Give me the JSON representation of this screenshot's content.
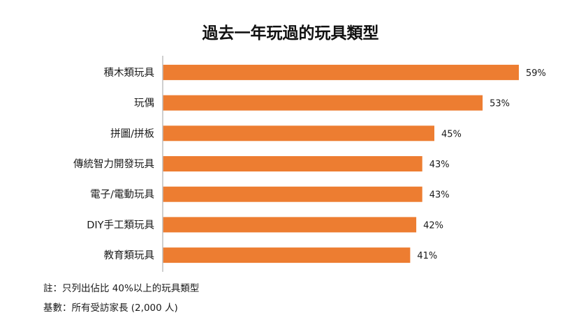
{
  "chart_data": {
    "type": "bar",
    "orientation": "horizontal",
    "title": "過去一年玩過的玩具類型",
    "categories": [
      "積木類玩具",
      "玩偶",
      "拼圖/拼板",
      "傳統智力開發玩具",
      "電子/電動玩具",
      "DIY手工類玩具",
      "教育類玩具"
    ],
    "values": [
      59,
      53,
      45,
      43,
      43,
      42,
      41
    ],
    "value_labels": [
      "59%",
      "53%",
      "45%",
      "43%",
      "43%",
      "42%",
      "41%"
    ],
    "xlim": [
      0,
      60
    ],
    "grid": false,
    "legend": "none",
    "bar_color": "#ED7D31",
    "axis_color": "#BFBFBF"
  },
  "notes": {
    "note": "註：只列出佔比 40%以上的玩具類型",
    "base": "基數：所有受訪家長 (2,000 人)"
  }
}
